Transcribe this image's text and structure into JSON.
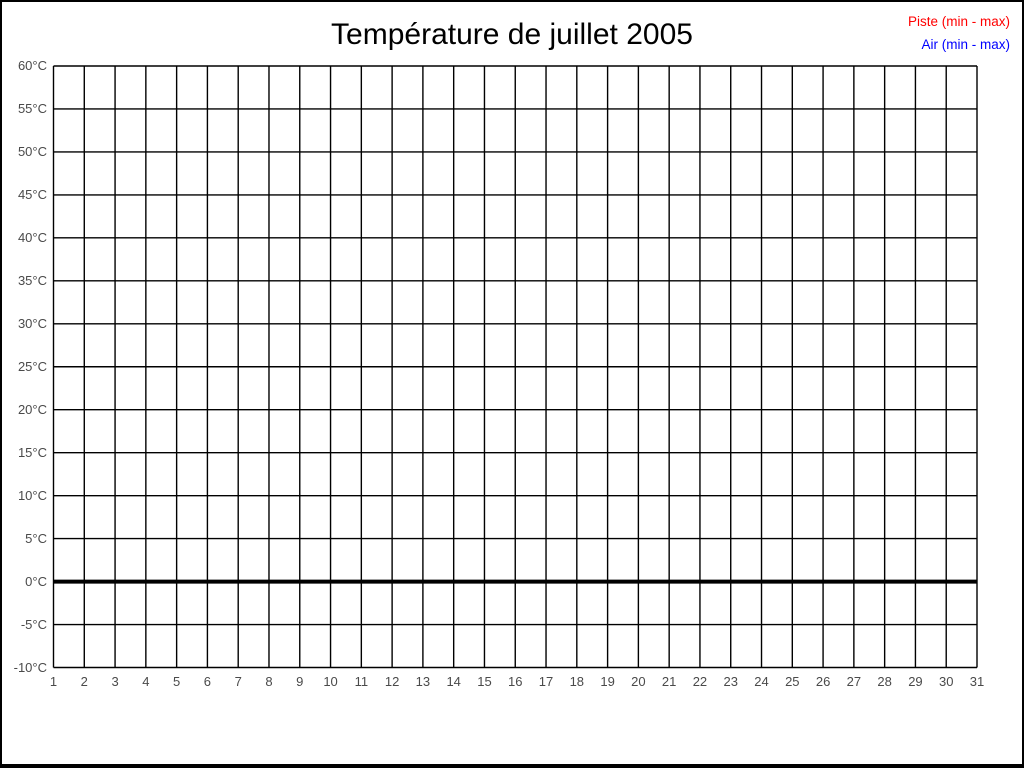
{
  "page": {
    "background": "#ffffff",
    "border_color": "#000000"
  },
  "header": {
    "title": "Température de juillet 2005"
  },
  "legend": {
    "position": "top-right",
    "items": [
      {
        "label": "Piste (min - max)",
        "color": "#ff0000"
      },
      {
        "label": "Air (min - max)",
        "color": "#0000ff"
      }
    ]
  },
  "chart_data": {
    "type": "line",
    "title": "Température de juillet 2005",
    "xlabel": "",
    "ylabel": "",
    "xlim": [
      1,
      31
    ],
    "ylim": [
      -10,
      60
    ],
    "y_step": 5,
    "grid": true,
    "grid_color": "#000000",
    "x_tick_labels": [
      "1",
      "2",
      "3",
      "4",
      "5",
      "6",
      "7",
      "8",
      "9",
      "10",
      "11",
      "12",
      "13",
      "14",
      "15",
      "16",
      "17",
      "18",
      "19",
      "20",
      "21",
      "22",
      "23",
      "24",
      "25",
      "26",
      "27",
      "28",
      "29",
      "30",
      "31"
    ],
    "y_tick_labels": [
      "60°C",
      "55°C",
      "50°C",
      "45°C",
      "40°C",
      "35°C",
      "30°C",
      "25°C",
      "20°C",
      "15°C",
      "10°C",
      "5°C",
      "0°C",
      "-5°C",
      "-10°C"
    ],
    "zero_line": {
      "value": 0,
      "color": "#000000",
      "width": 4
    },
    "series": [
      {
        "name": "Piste (min - max)",
        "color": "#ff0000",
        "values": []
      },
      {
        "name": "Air (min - max)",
        "color": "#0000ff",
        "values": []
      }
    ]
  }
}
